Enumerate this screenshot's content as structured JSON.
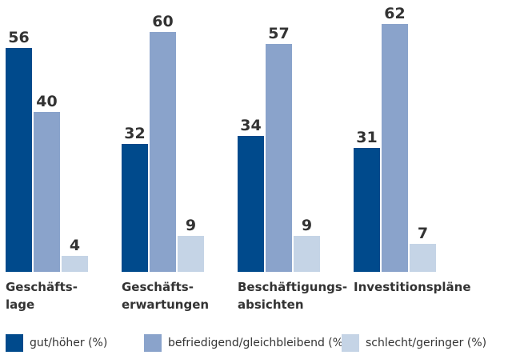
{
  "chart_data": {
    "type": "bar",
    "categories": [
      "Geschäfts-\nlage",
      "Geschäfts-\nerwartungen",
      "Beschäftigungs-\nabsichten",
      "Investitionspläne"
    ],
    "series": [
      {
        "name": "gut/höher (%)",
        "color": "#004a8c",
        "values": [
          56,
          32,
          34,
          31
        ]
      },
      {
        "name": "befriedigend/gleichbleibend (%)",
        "color": "#8aa3cb",
        "values": [
          40,
          60,
          57,
          62
        ]
      },
      {
        "name": "schlecht/geringer (%)",
        "color": "#c5d4e6",
        "values": [
          4,
          9,
          9,
          7
        ]
      }
    ]
  }
}
